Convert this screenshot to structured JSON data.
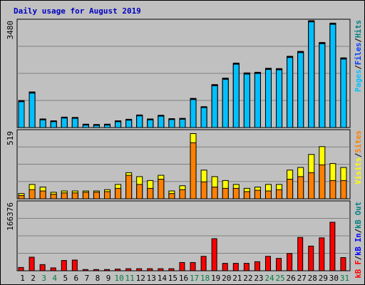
{
  "chart_data": {
    "type": "bar",
    "title": "Daily usage for August 2019",
    "days": [
      "1",
      "2",
      "3",
      "4",
      "5",
      "6",
      "7",
      "8",
      "9",
      "10",
      "11",
      "12",
      "13",
      "14",
      "15",
      "16",
      "17",
      "18",
      "19",
      "20",
      "21",
      "22",
      "23",
      "24",
      "25",
      "26",
      "27",
      "28",
      "29",
      "30",
      "31"
    ],
    "weekend_days": [
      "3",
      "4",
      "10",
      "11",
      "17",
      "18",
      "24",
      "25",
      "31"
    ],
    "panels": [
      {
        "max_label": "3480",
        "ylim": [
          0,
          3480
        ],
        "legend": [
          "Pages",
          "/",
          "Files",
          "/",
          "Hits"
        ],
        "legend_colors": [
          "#00c0ff",
          "#000000",
          "#0040ff",
          "#000000",
          "#008080"
        ],
        "series": [
          {
            "name": "Hits",
            "color": "#008080",
            "values": [
              880,
              1160,
              280,
              220,
              340,
              330,
              110,
              100,
              110,
              220,
              270,
              410,
              280,
              400,
              290,
              300,
              950,
              680,
              1400,
              1610,
              2100,
              1780,
              1800,
              1930,
              1920,
              2320,
              2480,
              3480,
              2770,
              3400,
              2270
            ]
          },
          {
            "name": "Files",
            "color": "#0040ff",
            "values": [
              860,
              1140,
              260,
              200,
              320,
              310,
              90,
              80,
              90,
              200,
              250,
              390,
              260,
              380,
              270,
              280,
              930,
              660,
              1380,
              1590,
              2080,
              1760,
              1780,
              1910,
              1900,
              2300,
              2460,
              3460,
              2750,
              3380,
              2250
            ]
          },
          {
            "name": "Pages",
            "color": "#00c0ff",
            "values": [
              840,
              1120,
              250,
              190,
              310,
              300,
              80,
              70,
              80,
              190,
              240,
              380,
              250,
              370,
              260,
              270,
              910,
              650,
              1360,
              1570,
              2060,
              1740,
              1760,
              1890,
              1880,
              2280,
              2440,
              3440,
              2730,
              3360,
              2230
            ]
          }
        ]
      },
      {
        "max_label": "519",
        "ylim": [
          0,
          519
        ],
        "legend": [
          "Visits",
          "/",
          "Sites"
        ],
        "legend_colors": [
          "#ffff00",
          "#000000",
          "#ff8000"
        ],
        "series": [
          {
            "name": "Visits",
            "color": "#ffff00",
            "values": [
              40,
              110,
              90,
              50,
              60,
              60,
              60,
              60,
              70,
              110,
              200,
              170,
              140,
              180,
              60,
              100,
              500,
              220,
              170,
              140,
              110,
              80,
              90,
              110,
              110,
              220,
              240,
              340,
              400,
              270,
              240
            ]
          },
          {
            "name": "Sites",
            "color": "#ff8000",
            "values": [
              25,
              70,
              60,
              35,
              45,
              45,
              50,
              50,
              55,
              80,
              180,
              110,
              80,
              150,
              40,
              70,
              430,
              130,
              90,
              80,
              80,
              55,
              65,
              60,
              70,
              150,
              170,
              200,
              260,
              140,
              140
            ]
          }
        ]
      },
      {
        "max_label": "166376",
        "ylim": [
          0,
          166376
        ],
        "legend": [
          "kB F",
          "/",
          "kB In",
          "/",
          "kB Out"
        ],
        "legend_colors": [
          "#ff0000",
          "#000000",
          "#0000ff",
          "#000000",
          "#008080"
        ],
        "series": [
          {
            "name": "kB F",
            "color": "#ff0000",
            "values": [
              8000,
              33000,
              15000,
              7000,
              25000,
              26000,
              3000,
              3000,
              3000,
              4000,
              5000,
              5000,
              5000,
              5000,
              5000,
              20000,
              20000,
              35000,
              78000,
              18000,
              18000,
              18000,
              22000,
              35000,
              30000,
              42000,
              81000,
              60000,
              80000,
              118000,
              32000
            ]
          }
        ]
      }
    ]
  }
}
